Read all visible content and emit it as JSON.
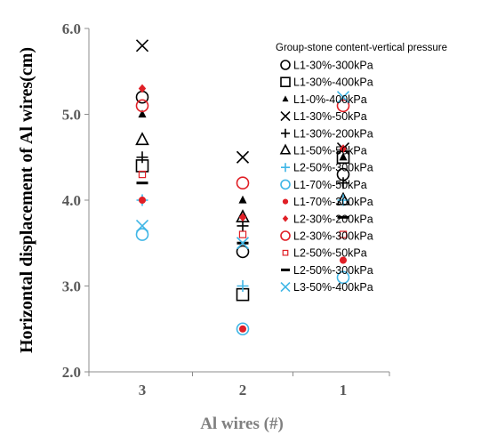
{
  "chart_data": {
    "type": "scatter",
    "xlabel": "Al wires (#)",
    "ylabel": "Horizontal displacement of Al wires(cm)",
    "ylim": [
      2.0,
      6.0
    ],
    "yticks": [
      "2.0",
      "3.0",
      "4.0",
      "5.0",
      "6.0"
    ],
    "categories": [
      "3",
      "2",
      "1"
    ],
    "grid": false,
    "legend_title": "Group-stone content-vertical pressure",
    "legend_position": "right",
    "series": [
      {
        "name": "L1-30%-300kPa",
        "marker": "circle-open",
        "color": "#000000",
        "values": [
          5.2,
          3.4,
          4.3
        ]
      },
      {
        "name": "L1-30%-400kPa",
        "marker": "square-open",
        "color": "#000000",
        "values": [
          4.4,
          2.9,
          4.5
        ]
      },
      {
        "name": "L1-0%-400kPa",
        "marker": "triangle-filled",
        "color": "#000000",
        "values": [
          5.0,
          4.0,
          4.5
        ]
      },
      {
        "name": "L1-30%-50kPa",
        "marker": "x",
        "color": "#000000",
        "values": [
          5.8,
          4.5,
          4.6
        ]
      },
      {
        "name": "L1-30%-200kPa",
        "marker": "plus",
        "color": "#000000",
        "values": [
          4.5,
          3.7,
          4.2
        ]
      },
      {
        "name": "L1-50%-50kPa",
        "marker": "triangle-open",
        "color": "#000000",
        "values": [
          4.7,
          3.8,
          4.0
        ]
      },
      {
        "name": "L2-50%-300kPa",
        "marker": "plus",
        "color": "#3fb6e6",
        "values": [
          4.0,
          3.0,
          4.0
        ]
      },
      {
        "name": "L1-70%-50kPa",
        "marker": "circle-open",
        "color": "#3fb6e6",
        "values": [
          3.6,
          2.5,
          3.1
        ]
      },
      {
        "name": "L1-70%-300kPa",
        "marker": "circle-filled",
        "color": "#e01f26",
        "values": [
          4.0,
          2.5,
          3.3
        ]
      },
      {
        "name": "L2-30%-200kPa",
        "marker": "diamond-filled",
        "color": "#e01f26",
        "values": [
          5.3,
          3.8,
          4.6
        ]
      },
      {
        "name": "L2-30%-300kPa",
        "marker": "circle-open",
        "color": "#e01f26",
        "values": [
          5.1,
          4.2,
          5.1
        ]
      },
      {
        "name": "L2-50%-50kPa",
        "marker": "square-open-small",
        "color": "#e01f26",
        "values": [
          4.3,
          3.6,
          3.6
        ]
      },
      {
        "name": "L2-50%-300kPa",
        "marker": "dash",
        "color": "#000000",
        "values": [
          4.2,
          3.5,
          3.8
        ]
      },
      {
        "name": "L3-50%-400kPa",
        "marker": "x",
        "color": "#3fb6e6",
        "values": [
          3.7,
          3.5,
          5.2
        ]
      }
    ]
  }
}
